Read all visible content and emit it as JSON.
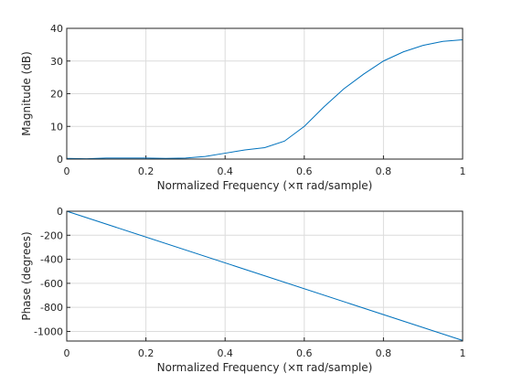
{
  "chart_data": [
    {
      "type": "line",
      "xlabel": "Normalized Frequency  (×π rad/sample)",
      "ylabel": "Magnitude (dB)",
      "xlim": [
        0,
        1
      ],
      "ylim": [
        0,
        40
      ],
      "xticks": [
        "0",
        "0.2",
        "0.4",
        "0.6",
        "0.8",
        "1"
      ],
      "yticks": [
        "0",
        "10",
        "20",
        "30",
        "40"
      ],
      "grid": true,
      "color": "#0072bd",
      "series": [
        {
          "x": [
            0,
            0.05,
            0.1,
            0.15,
            0.2,
            0.25,
            0.3,
            0.35,
            0.4,
            0.45,
            0.5,
            0.55,
            0.6,
            0.65,
            0.7,
            0.75,
            0.8,
            0.85,
            0.9,
            0.95,
            1.0
          ],
          "y": [
            0.2,
            0.1,
            0.3,
            0.3,
            0.3,
            0.2,
            0.3,
            0.8,
            1.8,
            2.8,
            3.5,
            5.5,
            10,
            16,
            21.5,
            26,
            30,
            32.8,
            34.8,
            36,
            36.5
          ]
        }
      ]
    },
    {
      "type": "line",
      "xlabel": "Normalized Frequency  (×π rad/sample)",
      "ylabel": "Phase (degrees)",
      "xlim": [
        0,
        1
      ],
      "ylim": [
        -1080,
        0
      ],
      "xticks": [
        "0",
        "0.2",
        "0.4",
        "0.6",
        "0.8",
        "1"
      ],
      "yticks": [
        "0",
        "-200",
        "-400",
        "-600",
        "-800",
        "-1000"
      ],
      "grid": true,
      "color": "#0072bd",
      "series": [
        {
          "x": [
            0,
            1
          ],
          "y": [
            0,
            -1075
          ]
        }
      ]
    }
  ]
}
